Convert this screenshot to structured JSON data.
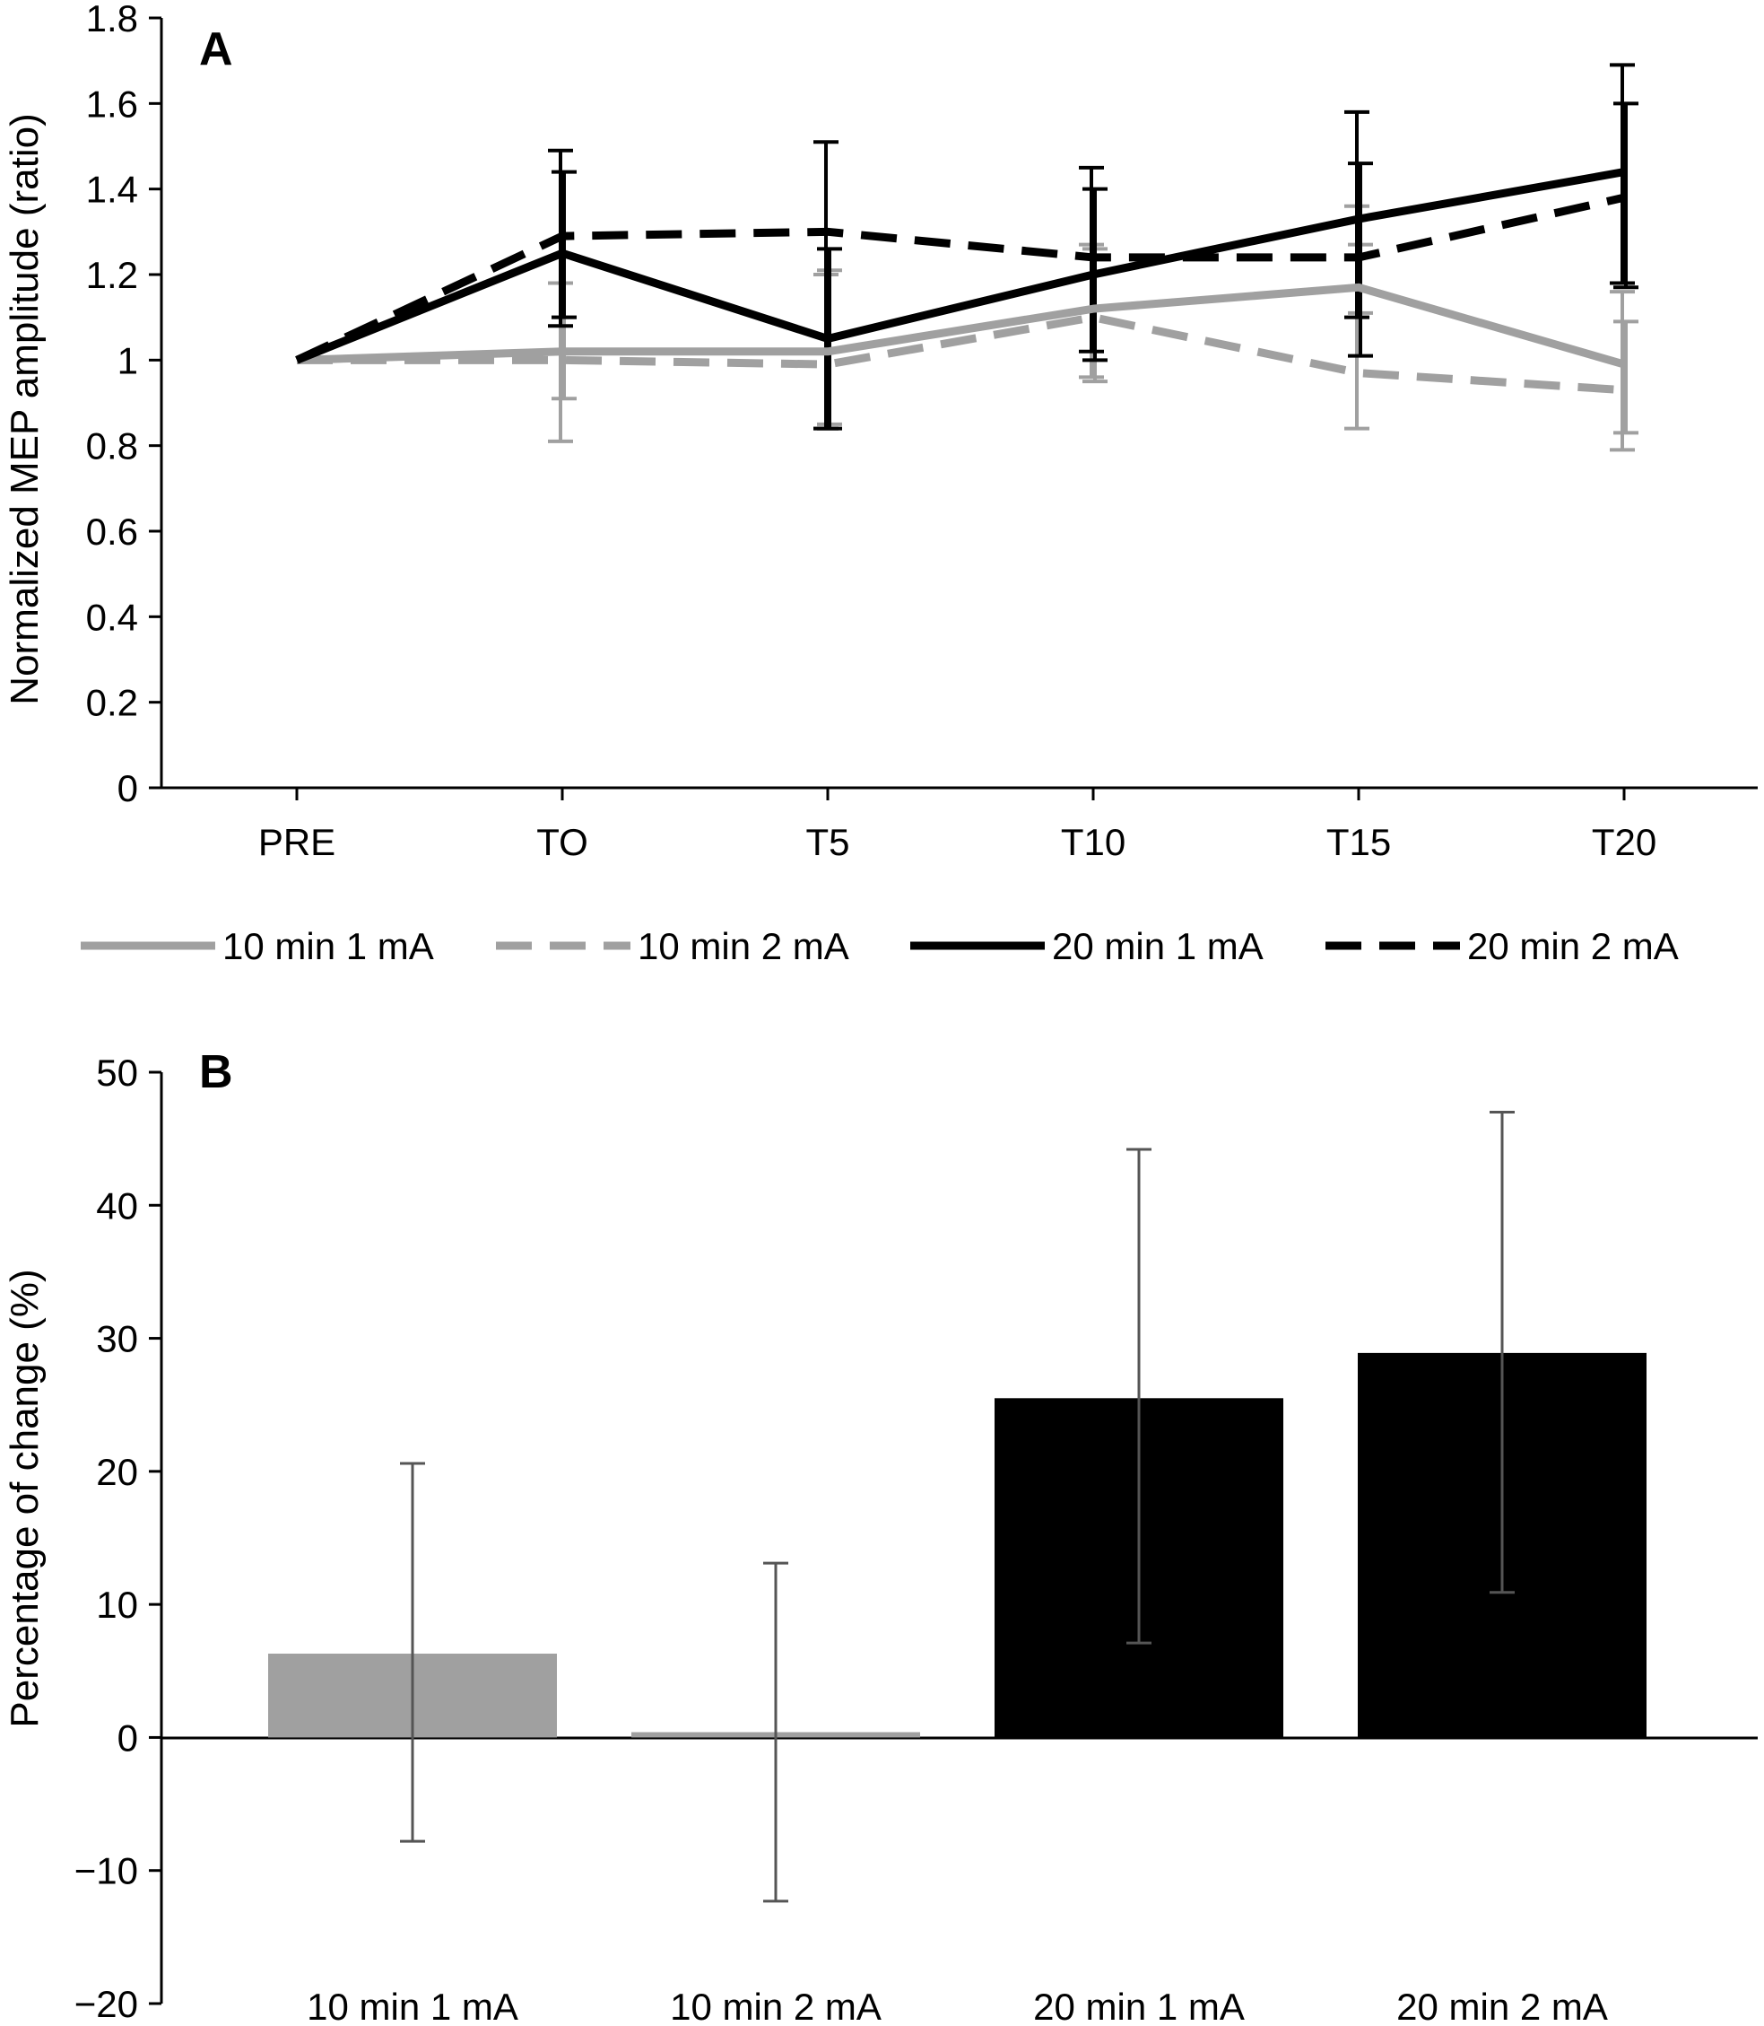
{
  "colors": {
    "light": "#a0a0a0",
    "dark": "#000000",
    "error_bar_b": "#555555"
  },
  "chart_data": [
    {
      "type": "line",
      "panel": "A",
      "ylabel": "Normalized MEP amplitude (ratio)",
      "categories": [
        "PRE",
        "TO",
        "T5",
        "T10",
        "T15",
        "T20"
      ],
      "ylim": [
        0,
        1.8
      ],
      "yticks": [
        "0",
        "0.2",
        "0.4",
        "0.6",
        "0.8",
        "1",
        "1.2",
        "1.4",
        "1.6",
        "1.8"
      ],
      "grid": false,
      "legend_position": "bottom",
      "series": [
        {
          "name": "10 min 1 mA",
          "color": "light",
          "dashed": false,
          "values": [
            1.0,
            1.02,
            1.02,
            1.12,
            1.17,
            0.99
          ],
          "err_low": [
            null,
            0.81,
            0.84,
            0.96,
            0.84,
            0.79
          ],
          "err_high": [
            null,
            1.18,
            1.2,
            1.27,
            1.36,
            1.16
          ]
        },
        {
          "name": "10 min 2 mA",
          "color": "light",
          "dashed": true,
          "values": [
            1.0,
            1.0,
            0.99,
            1.1,
            0.97,
            0.93
          ],
          "err_low": [
            null,
            0.91,
            0.85,
            0.95,
            1.11,
            0.83
          ],
          "err_high": [
            null,
            1.1,
            1.21,
            1.26,
            1.27,
            1.09
          ]
        },
        {
          "name": "20 min 1 mA",
          "color": "dark",
          "dashed": false,
          "values": [
            1.0,
            1.25,
            1.05,
            1.2,
            1.33,
            1.44
          ],
          "err_low": [
            null,
            1.08,
            0.84,
            1.02,
            1.1,
            1.18
          ],
          "err_high": [
            null,
            1.49,
            1.51,
            1.45,
            1.58,
            1.69
          ]
        },
        {
          "name": "20 min 2 mA",
          "color": "dark",
          "dashed": true,
          "values": [
            1.0,
            1.29,
            1.3,
            1.24,
            1.24,
            1.38
          ],
          "err_low": [
            null,
            1.1,
            0.84,
            1.0,
            1.01,
            1.17
          ],
          "err_high": [
            null,
            1.44,
            1.26,
            1.4,
            1.46,
            1.6
          ]
        }
      ]
    },
    {
      "type": "bar",
      "panel": "B",
      "ylabel": "Percentage of change (%)",
      "categories": [
        "10 min 1 mA",
        "10 min 2 mA",
        "20 min 1 mA",
        "20 min 2 mA"
      ],
      "values": [
        6.3,
        0.4,
        25.5,
        28.9
      ],
      "bar_colors": [
        "light",
        "light",
        "dark",
        "dark"
      ],
      "err_low": [
        -7.8,
        -12.3,
        7.1,
        10.9
      ],
      "err_high": [
        20.6,
        13.1,
        44.2,
        47.0
      ],
      "ylim": [
        -20,
        50
      ],
      "yticks": [
        "−20",
        "−10",
        "0",
        "10",
        "20",
        "30",
        "40",
        "50"
      ],
      "grid": false
    }
  ]
}
